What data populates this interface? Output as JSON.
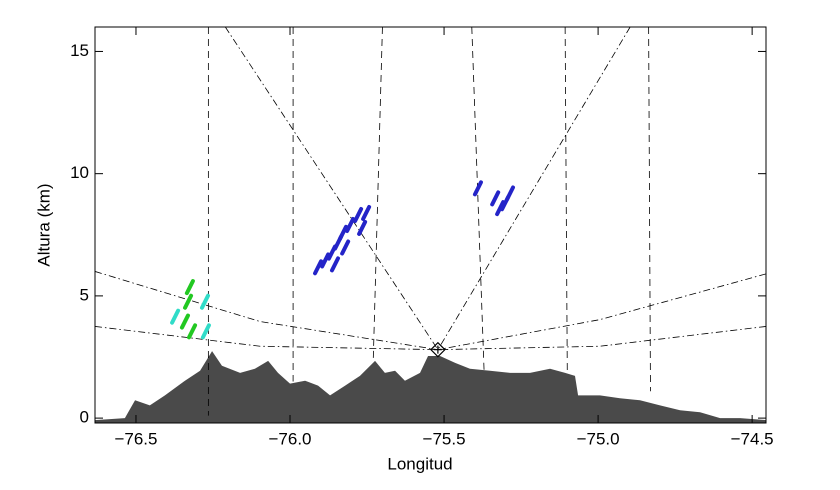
{
  "chart_data": {
    "type": "area",
    "x_label": "Longitud",
    "y_label": "Altura (km)",
    "xlim": [
      -76.633,
      -74.455
    ],
    "ylim": [
      -0.2,
      16
    ],
    "xticks": [
      {
        "value": -76.5,
        "label": "−76.5"
      },
      {
        "value": -76.0,
        "label": "−76.0"
      },
      {
        "value": -75.5,
        "label": "−75.5"
      },
      {
        "value": -75.0,
        "label": "−75.0"
      },
      {
        "value": -74.5,
        "label": "−74.5"
      }
    ],
    "yticks": [
      0,
      5,
      10,
      15
    ],
    "color": "#4a4a4a",
    "x": [
      -76.633,
      -76.536,
      -76.503,
      -76.455,
      -76.406,
      -76.341,
      -76.292,
      -76.253,
      -76.221,
      -76.162,
      -76.114,
      -76.071,
      -76.039,
      -76.0,
      -75.951,
      -75.909,
      -75.87,
      -75.821,
      -75.773,
      -75.724,
      -75.692,
      -75.659,
      -75.627,
      -75.578,
      -75.552,
      -75.513,
      -75.464,
      -75.416,
      -75.351,
      -75.286,
      -75.221,
      -75.156,
      -75.107,
      -75.075,
      -75.065,
      -74.994,
      -74.929,
      -74.864,
      -74.799,
      -74.734,
      -74.669,
      -74.604,
      -74.539,
      -74.455
    ],
    "values": [
      -0.08,
      0,
      0.73,
      0.52,
      0.93,
      1.53,
      1.94,
      2.74,
      2.14,
      1.85,
      2.02,
      2.34,
      1.85,
      1.41,
      1.53,
      1.33,
      0.93,
      1.33,
      1.73,
      2.34,
      1.85,
      1.94,
      1.53,
      1.85,
      2.54,
      2.54,
      2.26,
      2.02,
      1.94,
      1.85,
      1.85,
      2.02,
      1.85,
      1.73,
      0.93,
      0.93,
      0.81,
      0.73,
      0.52,
      0.32,
      0.24,
      0,
      0,
      -0.08
    ],
    "lines": [
      {
        "style": "dashed",
        "x": [
          -76.265,
          -76.265
        ],
        "y": [
          16,
          0.1
        ]
      },
      {
        "style": "dashed",
        "x": [
          -75.99,
          -75.99
        ],
        "y": [
          16,
          1.5
        ]
      },
      {
        "style": "dashed",
        "x": [
          -75.7,
          -75.73
        ],
        "y": [
          16,
          2.3
        ]
      },
      {
        "style": "dashed",
        "x": [
          -75.41,
          -75.37
        ],
        "y": [
          16,
          1.9
        ]
      },
      {
        "style": "dashed",
        "x": [
          -75.107,
          -75.1
        ],
        "y": [
          16,
          1.85
        ]
      },
      {
        "style": "dashed",
        "x": [
          -74.836,
          -74.83
        ],
        "y": [
          16,
          1.1
        ]
      },
      {
        "style": "dashdot",
        "x": [
          -76.21,
          -75.52
        ],
        "y": [
          16,
          2.8
        ]
      },
      {
        "style": "dashdot",
        "x": [
          -74.896,
          -75.52
        ],
        "y": [
          16,
          2.8
        ]
      },
      {
        "style": "dashdot",
        "x": [
          -76.633,
          -76.097,
          -75.52
        ],
        "y": [
          6.0,
          3.95,
          2.8
        ]
      },
      {
        "style": "dashdot",
        "x": [
          -76.633,
          -76.097,
          -75.52
        ],
        "y": [
          3.75,
          2.94,
          2.8
        ]
      },
      {
        "style": "dashdot",
        "x": [
          -74.455,
          -74.994,
          -75.52
        ],
        "y": [
          5.9,
          4.03,
          2.8
        ]
      },
      {
        "style": "dashdot",
        "x": [
          -74.455,
          -74.994,
          -75.52
        ],
        "y": [
          3.75,
          2.94,
          2.8
        ]
      }
    ],
    "echoes": [
      {
        "color": "#2424c8",
        "x": [
          -75.909,
          -75.886,
          -75.864,
          -75.844,
          -75.828,
          -75.805,
          -75.779,
          -75.753,
          -75.766,
          -75.821,
          -75.854
        ],
        "y": [
          6.17,
          6.45,
          6.77,
          7.18,
          7.58,
          7.9,
          8.31,
          8.39,
          7.78,
          6.98,
          6.29
        ]
      },
      {
        "color": "#2424c8",
        "x": [
          -75.39,
          -75.334,
          -75.318,
          -75.302,
          -75.286
        ],
        "y": [
          9.4,
          8.99,
          8.59,
          8.79,
          9.19
        ]
      },
      {
        "color": "#22c822",
        "x": [
          -76.341,
          -76.331,
          -76.325,
          -76.318
        ],
        "y": [
          3.95,
          4.76,
          5.36,
          3.55
        ]
      },
      {
        "color": "#30dcc8",
        "x": [
          -76.373,
          -76.276,
          -76.273
        ],
        "y": [
          4.15,
          4.76,
          3.55
        ]
      }
    ],
    "radar": {
      "x": -75.52,
      "y": 2.8
    }
  }
}
